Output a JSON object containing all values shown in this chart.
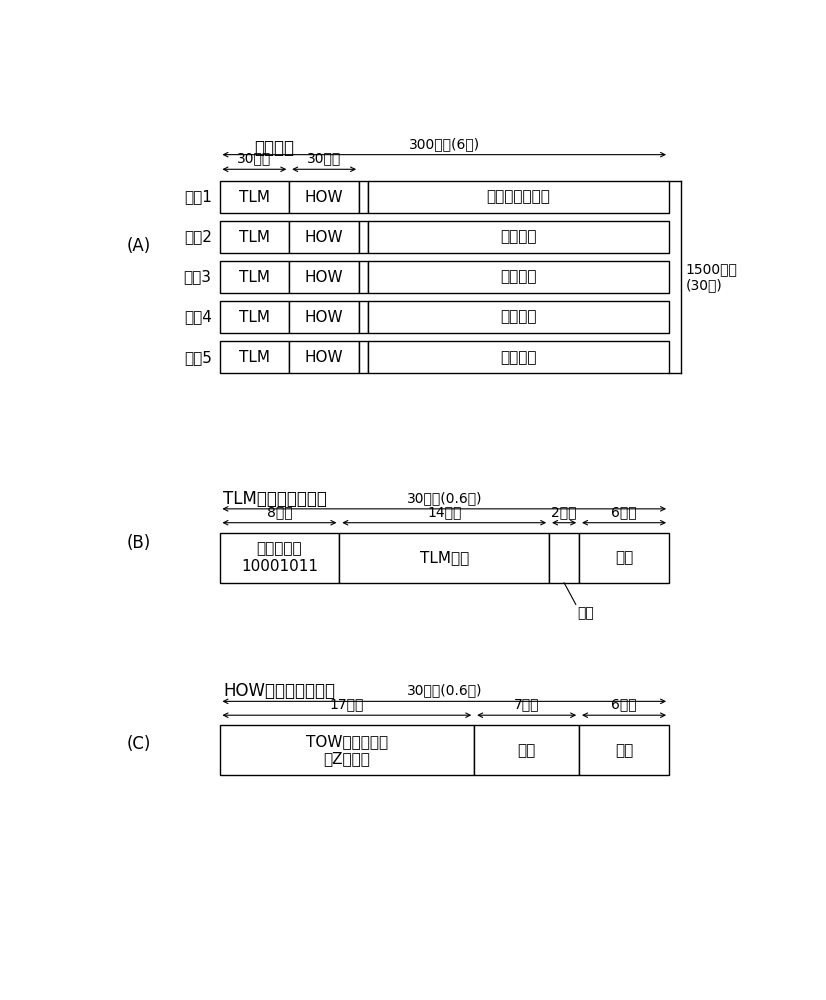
{
  "bg_color": "#ffffff",
  "text_color": "#000000",
  "box_color": "#ffffff",
  "box_edge_color": "#000000",
  "section_A": {
    "label": "(A)",
    "title": "主帧结构",
    "top_arrow_label": "300比特(6秒)",
    "sub_arrow1_label": "30比特",
    "sub_arrow2_label": "30比特",
    "side_label": "1500比特\n(30秒)",
    "subframes": [
      {
        "label": "子帧1",
        "col1": "TLM",
        "col2": "HOW",
        "col3": "卫星校正数据等"
      },
      {
        "label": "子帧2",
        "col1": "TLM",
        "col2": "HOW",
        "col3": "星历参数"
      },
      {
        "label": "子帧3",
        "col1": "TLM",
        "col2": "HOW",
        "col3": "星历参数"
      },
      {
        "label": "子帧4",
        "col1": "TLM",
        "col2": "HOW",
        "col3": "年历参数"
      },
      {
        "label": "子帧5",
        "col1": "TLM",
        "col2": "HOW",
        "col3": "年历参数"
      }
    ]
  },
  "section_B": {
    "label": "(B)",
    "title": "TLM（遥测）字结构",
    "top_arrow_label": "30比特(0.6秒)",
    "arrows": [
      "8比特",
      "14比特",
      "2比特",
      "6比特"
    ],
    "proportions": [
      8,
      14,
      2,
      6
    ],
    "cells": [
      "前导码数据\n10001011",
      "TLM消息",
      "",
      "奇偶"
    ],
    "note": "保留"
  },
  "section_C": {
    "label": "(C)",
    "title": "HOW（切换）字结构",
    "top_arrow_label": "30比特(0.6秒)",
    "arrows": [
      "17比特",
      "7比特",
      "6比特"
    ],
    "proportions": [
      17,
      7,
      6
    ],
    "cells": [
      "TOW（周时间）\n（Z计数）",
      "数据",
      "奇偶"
    ]
  }
}
